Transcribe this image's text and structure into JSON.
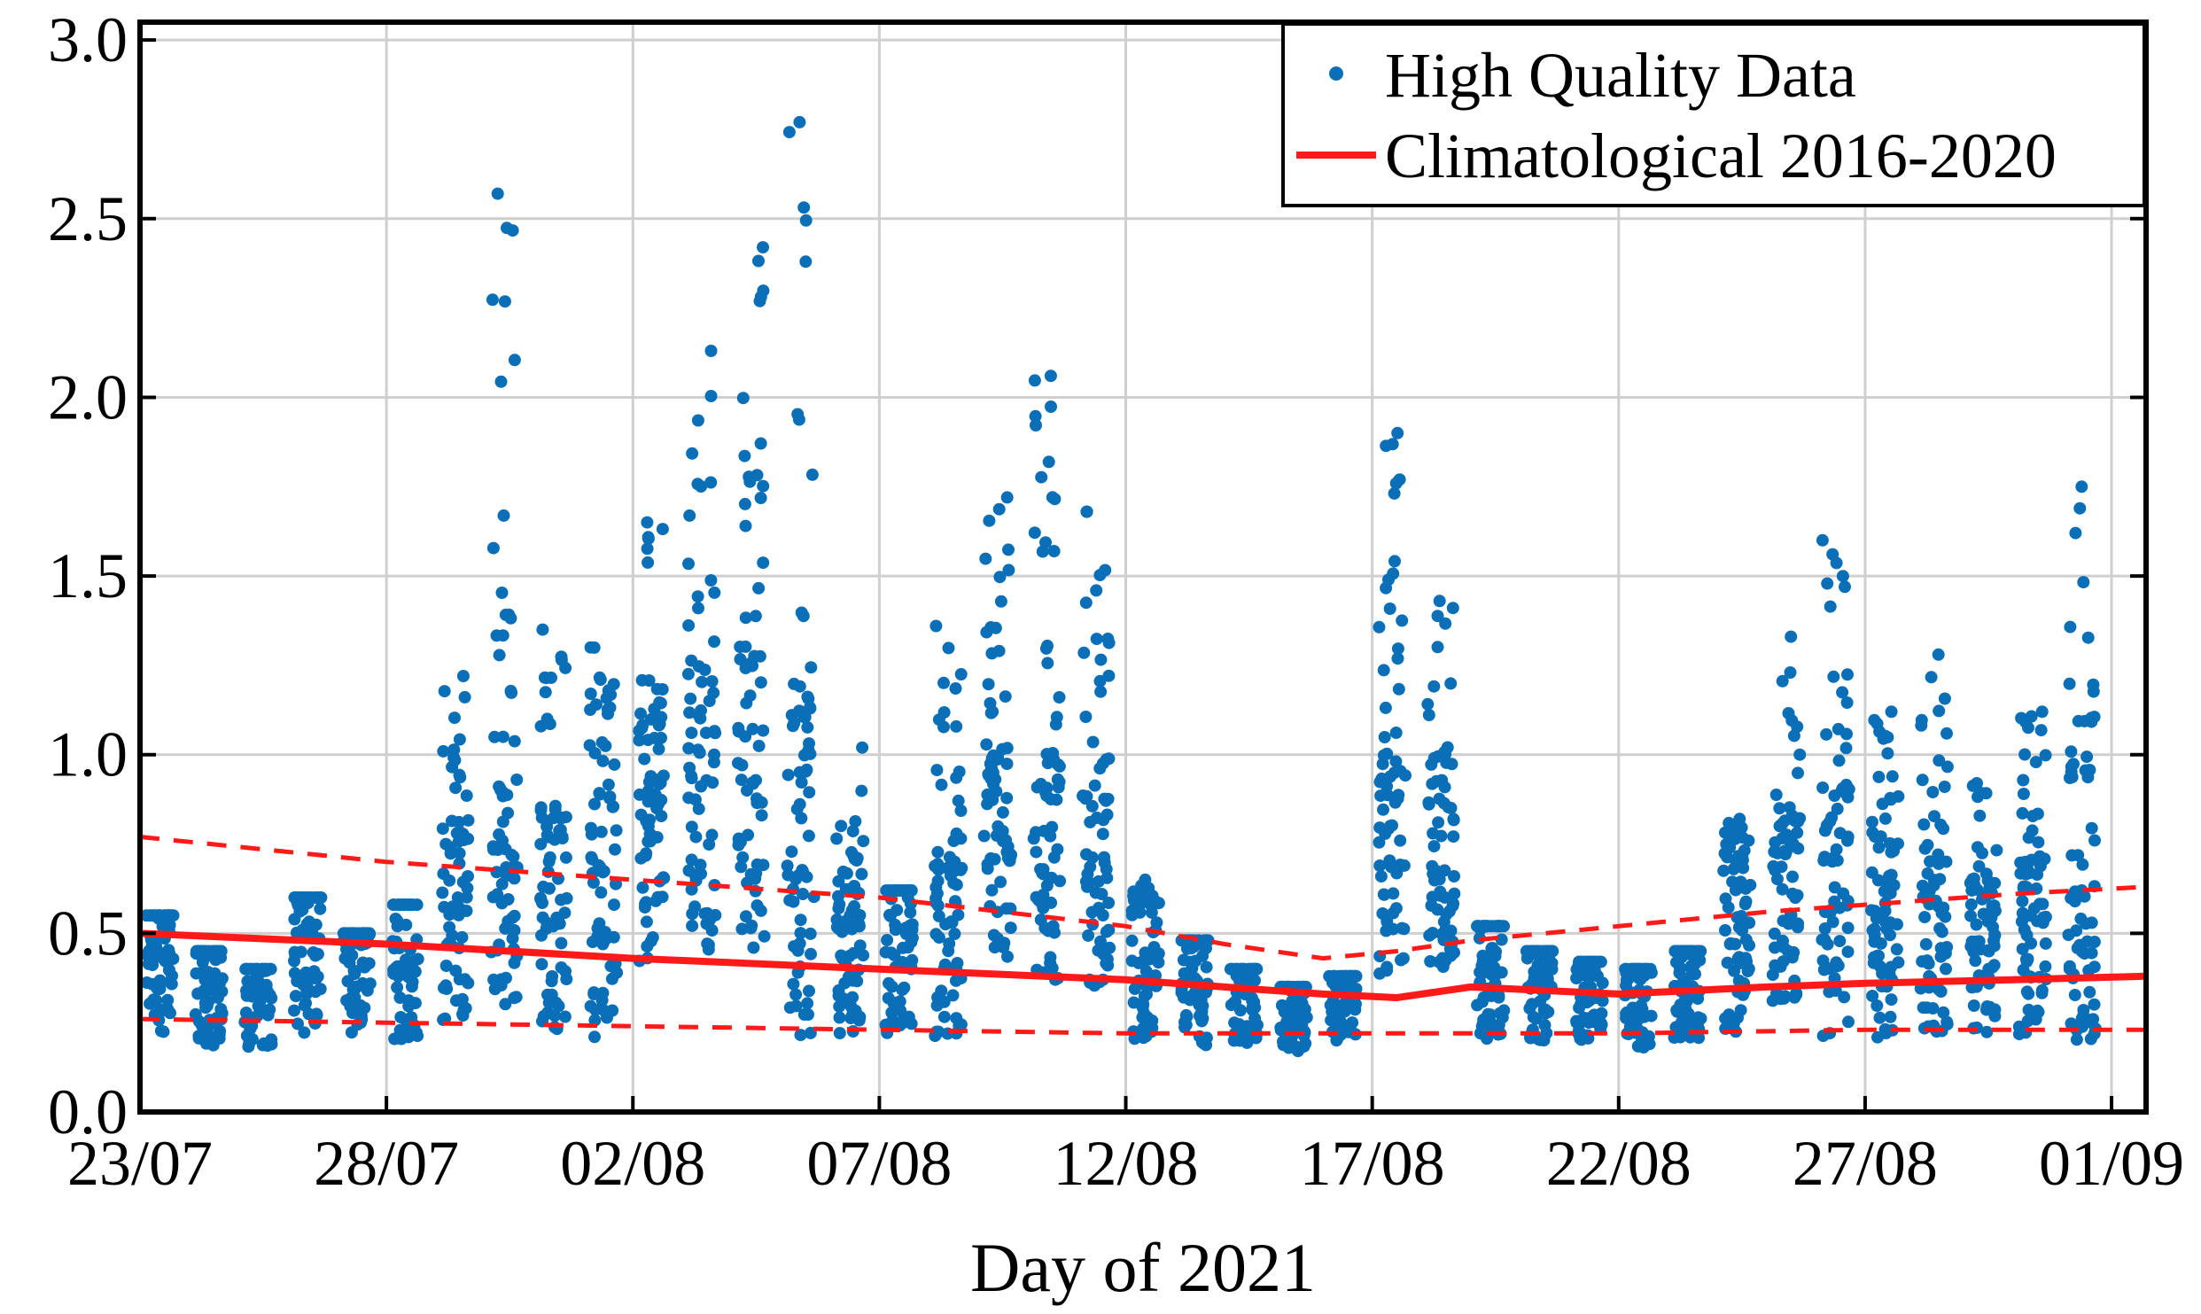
{
  "chart_data": {
    "type": "scatter",
    "title": "",
    "xlabel": "Day of 2021",
    "ylabel": "",
    "xlim": [
      0,
      40.7
    ],
    "ylim": [
      0,
      3.05
    ],
    "x_origin_label": "23/07",
    "x_ticks": [
      {
        "x": 0,
        "label": "23/07"
      },
      {
        "x": 5,
        "label": "28/07"
      },
      {
        "x": 10,
        "label": "02/08"
      },
      {
        "x": 15,
        "label": "07/08"
      },
      {
        "x": 20,
        "label": "12/08"
      },
      {
        "x": 25,
        "label": "17/08"
      },
      {
        "x": 30,
        "label": "22/08"
      },
      {
        "x": 35,
        "label": "27/08"
      },
      {
        "x": 40,
        "label": "01/09"
      }
    ],
    "y_ticks": [
      {
        "y": 0.0,
        "label": "0.0"
      },
      {
        "y": 0.5,
        "label": "0.5"
      },
      {
        "y": 1.0,
        "label": "1.0"
      },
      {
        "y": 1.5,
        "label": "1.5"
      },
      {
        "y": 2.0,
        "label": "2.0"
      },
      {
        "y": 2.5,
        "label": "2.5"
      },
      {
        "y": 3.0,
        "label": "3.0"
      }
    ],
    "grid": true,
    "legend": {
      "position": "top-right",
      "entries": [
        {
          "label": "High Quality Data",
          "marker": "dot",
          "color": "#0b6fb8"
        },
        {
          "label": "Climatological 2016-2020",
          "marker": "line",
          "color": "#ff1a1a"
        }
      ]
    },
    "series": [
      {
        "name": "High Quality Data",
        "kind": "daily-clusters",
        "color": "#0b6fb8",
        "clusters": [
          {
            "x": 0.4,
            "min": 0.22,
            "max": 0.55,
            "core": 0.55
          },
          {
            "x": 1.4,
            "min": 0.18,
            "max": 0.45,
            "core": 0.45
          },
          {
            "x": 2.4,
            "min": 0.18,
            "max": 0.4,
            "core": 0.4
          },
          {
            "x": 3.4,
            "min": 0.22,
            "max": 0.6,
            "core": 0.6
          },
          {
            "x": 4.4,
            "min": 0.22,
            "max": 0.5,
            "core": 0.5
          },
          {
            "x": 5.4,
            "min": 0.2,
            "max": 0.58,
            "core": 0.58
          },
          {
            "x": 6.4,
            "min": 0.25,
            "max": 1.22,
            "core": 0.78
          },
          {
            "x": 7.4,
            "min": 0.3,
            "max": 2.57,
            "core": 0.95
          },
          {
            "x": 8.4,
            "min": 0.22,
            "max": 1.35,
            "core": 0.82
          },
          {
            "x": 9.4,
            "min": 0.2,
            "max": 1.3,
            "core": 0.9
          },
          {
            "x": 10.4,
            "min": 0.42,
            "max": 1.65,
            "core": 1.05
          },
          {
            "x": 11.4,
            "min": 0.42,
            "max": 2.13,
            "core": 1.2
          },
          {
            "x": 12.4,
            "min": 0.45,
            "max": 2.42,
            "core": 1.3
          },
          {
            "x": 13.4,
            "min": 0.2,
            "max": 2.77,
            "core": 1.1
          },
          {
            "x": 14.4,
            "min": 0.22,
            "max": 1.02,
            "core": 0.62
          },
          {
            "x": 15.4,
            "min": 0.22,
            "max": 0.62,
            "core": 0.62
          },
          {
            "x": 16.4,
            "min": 0.18,
            "max": 1.36,
            "core": 0.7
          },
          {
            "x": 17.4,
            "min": 0.42,
            "max": 1.72,
            "core": 1.0
          },
          {
            "x": 18.4,
            "min": 0.35,
            "max": 2.06,
            "core": 1.0
          },
          {
            "x": 19.4,
            "min": 0.35,
            "max": 1.68,
            "core": 0.9
          },
          {
            "x": 20.4,
            "min": 0.2,
            "max": 0.65,
            "core": 0.58
          },
          {
            "x": 21.4,
            "min": 0.18,
            "max": 0.48,
            "core": 0.48
          },
          {
            "x": 22.4,
            "min": 0.18,
            "max": 0.4,
            "core": 0.4
          },
          {
            "x": 23.4,
            "min": 0.17,
            "max": 0.35,
            "core": 0.35
          },
          {
            "x": 24.4,
            "min": 0.2,
            "max": 0.38,
            "core": 0.38
          },
          {
            "x": 25.4,
            "min": 0.35,
            "max": 1.9,
            "core": 1.0
          },
          {
            "x": 26.4,
            "min": 0.4,
            "max": 1.43,
            "core": 0.9
          },
          {
            "x": 27.4,
            "min": 0.2,
            "max": 0.52,
            "core": 0.52
          },
          {
            "x": 28.4,
            "min": 0.2,
            "max": 0.45,
            "core": 0.45
          },
          {
            "x": 29.4,
            "min": 0.2,
            "max": 0.42,
            "core": 0.42
          },
          {
            "x": 30.4,
            "min": 0.18,
            "max": 0.4,
            "core": 0.4
          },
          {
            "x": 31.4,
            "min": 0.2,
            "max": 0.45,
            "core": 0.45
          },
          {
            "x": 32.4,
            "min": 0.22,
            "max": 0.82,
            "core": 0.7
          },
          {
            "x": 33.4,
            "min": 0.3,
            "max": 1.33,
            "core": 0.8
          },
          {
            "x": 34.4,
            "min": 0.2,
            "max": 1.6,
            "core": 0.9
          },
          {
            "x": 35.4,
            "min": 0.2,
            "max": 1.12,
            "core": 0.75
          },
          {
            "x": 36.4,
            "min": 0.22,
            "max": 1.28,
            "core": 0.7
          },
          {
            "x": 37.4,
            "min": 0.22,
            "max": 0.92,
            "core": 0.62
          },
          {
            "x": 38.4,
            "min": 0.2,
            "max": 1.12,
            "core": 0.7
          },
          {
            "x": 39.4,
            "min": 0.2,
            "max": 1.75,
            "core": 0.95
          }
        ]
      },
      {
        "name": "Climatological 2016-2020",
        "kind": "line",
        "color": "#ff1a1a",
        "x": [
          0,
          5,
          10,
          15,
          20,
          22,
          24,
          25.5,
          27,
          30,
          33,
          35,
          38,
          40.7
        ],
        "y": [
          0.5,
          0.47,
          0.43,
          0.4,
          0.37,
          0.35,
          0.33,
          0.32,
          0.35,
          0.33,
          0.35,
          0.36,
          0.37,
          0.38
        ]
      },
      {
        "name": "",
        "kind": "dashed-line",
        "color": "#ff1a1a",
        "x": [
          0,
          5,
          10,
          15,
          20,
          22,
          24,
          25.5,
          27,
          30,
          33,
          35,
          38,
          40.7
        ],
        "y": [
          0.77,
          0.7,
          0.65,
          0.6,
          0.52,
          0.47,
          0.43,
          0.45,
          0.48,
          0.52,
          0.56,
          0.58,
          0.61,
          0.63
        ]
      },
      {
        "name": "",
        "kind": "dashed-line",
        "color": "#ff1a1a",
        "x": [
          0,
          5,
          10,
          15,
          20,
          25,
          30,
          35,
          40.7
        ],
        "y": [
          0.26,
          0.25,
          0.24,
          0.23,
          0.22,
          0.22,
          0.22,
          0.23,
          0.23
        ]
      }
    ]
  }
}
